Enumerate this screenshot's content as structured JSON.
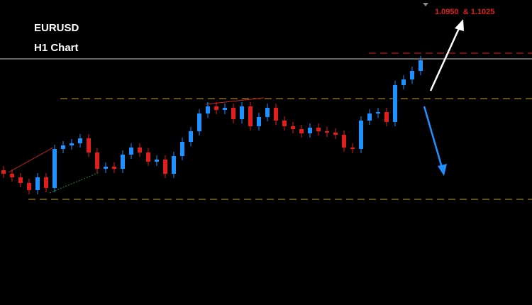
{
  "chart_data": {
    "type": "candlestick",
    "title": "EURUSD",
    "subtitle": "H1 Chart",
    "annotation": "1.0950  & 1.1025",
    "ylim": [
      1.07,
      1.0915
    ],
    "up_color": "#1e90ff",
    "down_color": "#e01e1e",
    "open": [
      1.0795,
      1.07925,
      1.079,
      1.0786,
      1.0781,
      1.079,
      1.07825,
      1.081,
      1.08125,
      1.0814,
      1.08175,
      1.08075,
      1.0796,
      1.07975,
      1.0796,
      1.0806,
      1.0811,
      1.08075,
      1.0801,
      1.08025,
      1.07925,
      1.0805,
      1.0815,
      1.08225,
      1.0835,
      1.084,
      1.08375,
      1.0839,
      1.0831,
      1.084,
      1.0826,
      1.08325,
      1.0839,
      1.083,
      1.0826,
      1.0824,
      1.0821,
      1.0825,
      1.08225,
      1.08215,
      1.082,
      1.0811,
      1.081,
      1.083,
      1.0835,
      1.0836,
      1.0829,
      1.0855,
      1.0859,
      1.0865
    ],
    "high": [
      1.0798,
      1.07955,
      1.0793,
      1.0789,
      1.0793,
      1.0793,
      1.0813,
      1.08155,
      1.0817,
      1.08205,
      1.08205,
      1.08105,
      1.08005,
      1.08005,
      1.0809,
      1.0814,
      1.0814,
      1.08105,
      1.08055,
      1.08055,
      1.0808,
      1.0818,
      1.08255,
      1.0838,
      1.0843,
      1.0843,
      1.0842,
      1.0842,
      1.0843,
      1.0843,
      1.08355,
      1.0842,
      1.0842,
      1.0833,
      1.0829,
      1.0827,
      1.0828,
      1.0828,
      1.08255,
      1.08245,
      1.0823,
      1.0814,
      1.0833,
      1.0838,
      1.0839,
      1.0839,
      1.0858,
      1.0862,
      1.0868,
      1.08755
    ],
    "low": [
      1.07895,
      1.0787,
      1.0783,
      1.0778,
      1.0778,
      1.07795,
      1.07795,
      1.0807,
      1.08095,
      1.0811,
      1.08045,
      1.0793,
      1.0793,
      1.0793,
      1.0793,
      1.0803,
      1.08045,
      1.0798,
      1.0798,
      1.07895,
      1.07895,
      1.0802,
      1.0812,
      1.08195,
      1.0832,
      1.08345,
      1.08345,
      1.0828,
      1.0828,
      1.0823,
      1.0823,
      1.08295,
      1.0827,
      1.0823,
      1.0821,
      1.0818,
      1.0818,
      1.08195,
      1.08185,
      1.0817,
      1.0808,
      1.0807,
      1.0807,
      1.0827,
      1.0832,
      1.0826,
      1.0826,
      1.0852,
      1.0856,
      1.0862
    ],
    "close": [
      1.07925,
      1.079,
      1.0786,
      1.0781,
      1.079,
      1.07825,
      1.081,
      1.08125,
      1.0814,
      1.08175,
      1.08075,
      1.0796,
      1.07975,
      1.0796,
      1.0806,
      1.0811,
      1.08075,
      1.0801,
      1.08025,
      1.07925,
      1.0805,
      1.0815,
      1.08225,
      1.0835,
      1.084,
      1.08375,
      1.0839,
      1.0831,
      1.084,
      1.0826,
      1.08325,
      1.0839,
      1.083,
      1.0826,
      1.0824,
      1.0821,
      1.0825,
      1.08225,
      1.08215,
      1.082,
      1.0811,
      1.081,
      1.083,
      1.0835,
      1.0836,
      1.0829,
      1.0855,
      1.0859,
      1.0865,
      1.08725
    ],
    "levels": [
      {
        "value": 1.08775,
        "color": "#d42020",
        "dashed": true
      },
      {
        "value": 1.08735,
        "color": "#c8c8c8",
        "dashed": false
      },
      {
        "value": 1.08455,
        "color": "#c8a020",
        "dashed": true
      },
      {
        "value": 1.07745,
        "color": "#c8a020",
        "dashed": true
      }
    ]
  }
}
